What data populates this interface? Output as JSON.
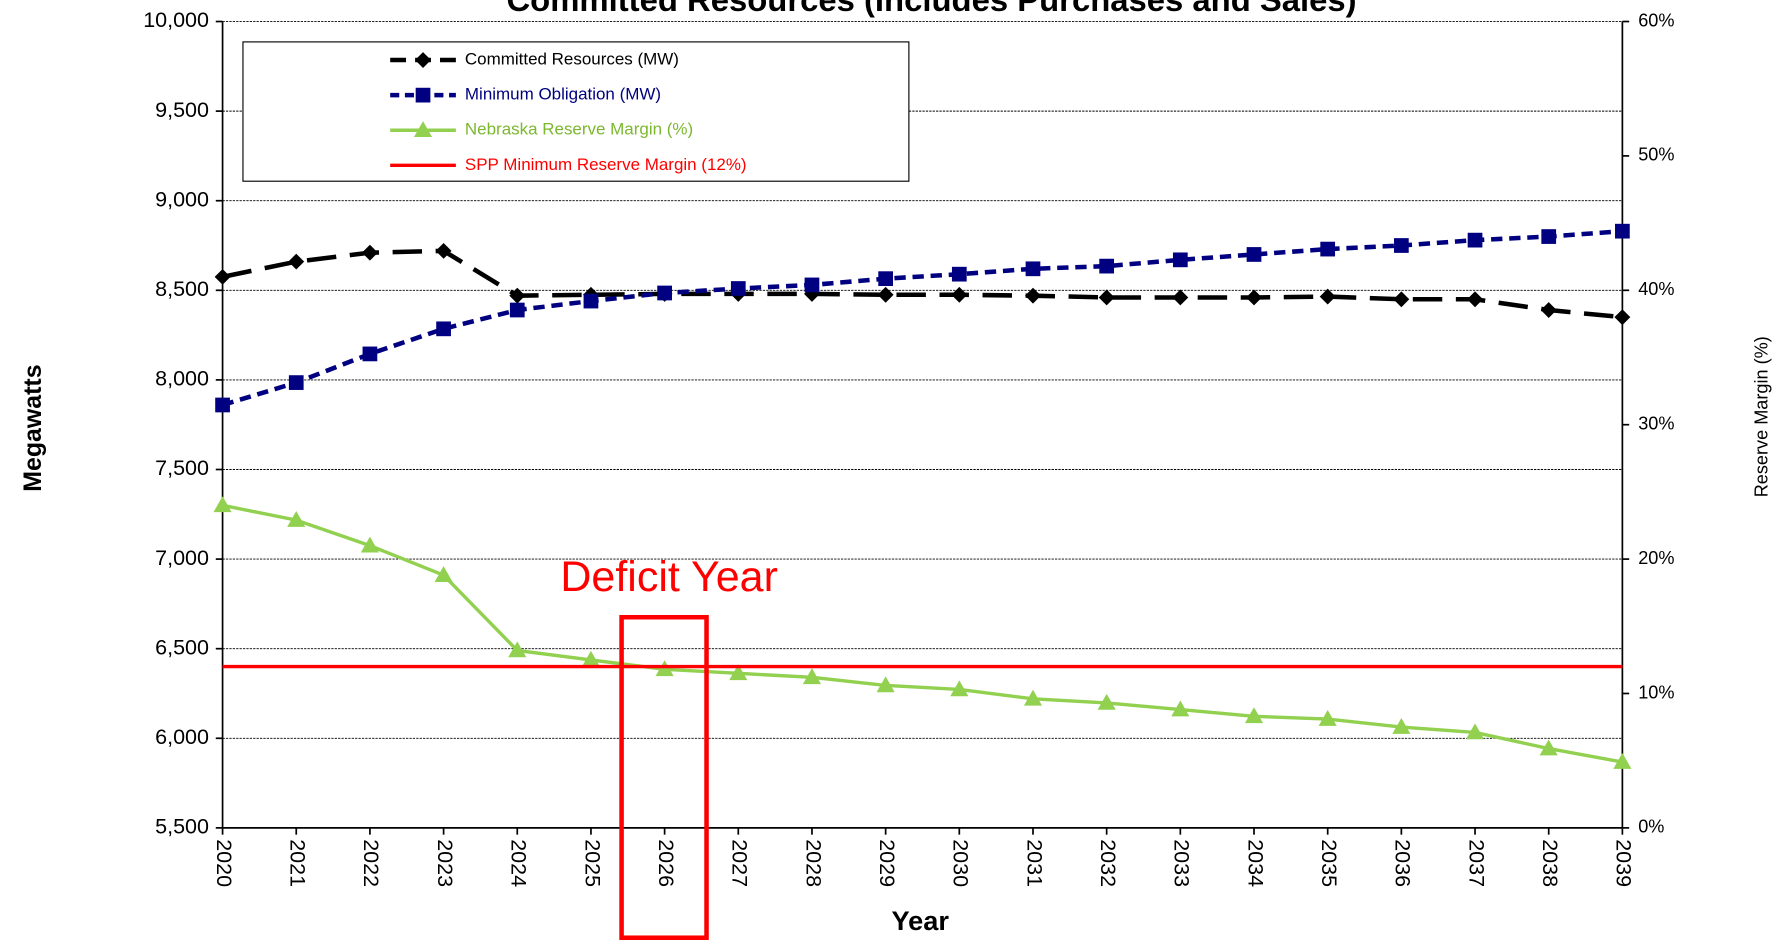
{
  "chart_data": {
    "type": "line",
    "title": "Committed Resources (Includes Purchases and Sales)",
    "x_label": "Year",
    "y_label": "Megawatts",
    "y2_label": "Reserve Margin (%)",
    "annotation": "Deficit Year",
    "annotation_category": 6,
    "categories": [
      "2020",
      "2021",
      "2022",
      "2023",
      "2024",
      "2025",
      "2026",
      "2027",
      "2028",
      "2029",
      "2030",
      "2031",
      "2032",
      "2033",
      "2034",
      "2035",
      "2036",
      "2037",
      "2038",
      "2039"
    ],
    "ylim": [
      5500,
      10000
    ],
    "yticks": [
      {
        "value": 5500,
        "label": "5,500"
      },
      {
        "value": 6000,
        "label": "6,000"
      },
      {
        "value": 6500,
        "label": "6,500"
      },
      {
        "value": 7000,
        "label": "7,000"
      },
      {
        "value": 7500,
        "label": "7,500"
      },
      {
        "value": 8000,
        "label": "8,000"
      },
      {
        "value": 8500,
        "label": "8,500"
      },
      {
        "value": 9000,
        "label": "9,000"
      },
      {
        "value": 9500,
        "label": "9,500"
      },
      {
        "value": 10000,
        "label": "10,000"
      }
    ],
    "y2lim": [
      0,
      60
    ],
    "y2ticks": [
      {
        "value": 0,
        "label": "0%"
      },
      {
        "value": 10,
        "label": "10%"
      },
      {
        "value": 20,
        "label": "20%"
      },
      {
        "value": 30,
        "label": "30%"
      },
      {
        "value": 40,
        "label": "40%"
      },
      {
        "value": 50,
        "label": "50%"
      },
      {
        "value": 60,
        "label": "60%"
      }
    ],
    "grid": true,
    "legend": "upper left",
    "series": [
      {
        "name": "Committed Resources (MW)",
        "color": "#000000",
        "dash": "long",
        "marker": "diamond",
        "values": [
          8575,
          8660,
          8710,
          8720,
          8470,
          8475,
          8480,
          8480,
          8480,
          8475,
          8475,
          8470,
          8460,
          8460,
          8460,
          8465,
          8450,
          8450,
          8390,
          8350
        ]
      },
      {
        "name": "Minimum Obligation (MW)",
        "color": "#000080",
        "dash": "short",
        "marker": "square",
        "values": [
          7860,
          7985,
          8145,
          8285,
          8390,
          8440,
          8485,
          8510,
          8530,
          8565,
          8590,
          8620,
          8635,
          8670,
          8700,
          8730,
          8750,
          8780,
          8800,
          8830
        ]
      },
      {
        "name": "Nebraska Reserve Margin (%)",
        "color": "#92D050",
        "dash": "solid",
        "marker": "triangle",
        "axis": "y2",
        "values": [
          24.0,
          22.9,
          21.0,
          18.8,
          13.2,
          12.5,
          11.8,
          11.5,
          11.2,
          10.6,
          10.3,
          9.6,
          9.3,
          8.8,
          8.3,
          8.1,
          7.5,
          7.1,
          5.9,
          4.9
        ]
      },
      {
        "name": "SPP Minimum Reserve Margin (12%)",
        "color": "#FF0000",
        "dash": "solid",
        "marker": "none",
        "axis": "y2",
        "values": [
          12,
          12,
          12,
          12,
          12,
          12,
          12,
          12,
          12,
          12,
          12,
          12,
          12,
          12,
          12,
          12,
          12,
          12,
          12,
          12
        ]
      }
    ]
  }
}
